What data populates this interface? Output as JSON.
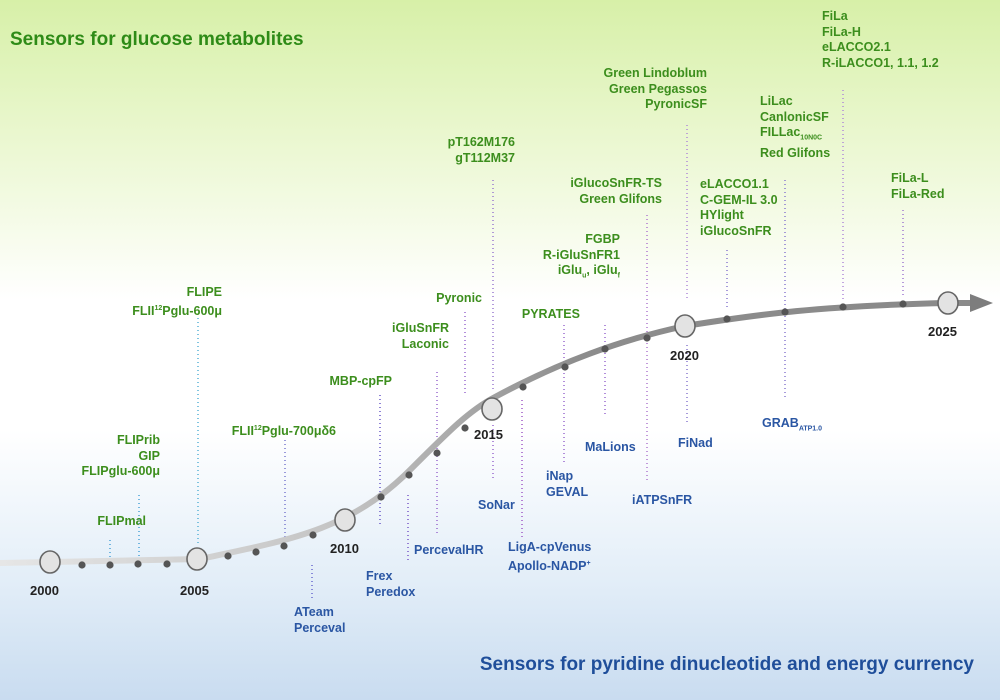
{
  "headings": {
    "top": "Sensors for glucose metabolites",
    "bottom": "Sensors for pyridine dinucleotide and energy currency"
  },
  "years": [
    "2000",
    "2005",
    "2010",
    "2015",
    "2020",
    "2025"
  ],
  "colors": {
    "green": "#3c8e1d",
    "blue": "#2a56a3",
    "curve": "#8c8c8c",
    "node": "#555555"
  },
  "glucose_sensors": [
    {
      "name": "flipmal",
      "lines": [
        "FLIPmal"
      ]
    },
    {
      "name": "flip-group-2003",
      "lines": [
        "FLIPrib",
        "GIP",
        "FLIPglu-600μ"
      ]
    },
    {
      "name": "flipe-group",
      "lines": [
        "FLIPE",
        "FLII|12|Pglu-600μ"
      ]
    },
    {
      "name": "flii-700",
      "lines": [
        "FLII|12|Pglu-700μδ6"
      ]
    },
    {
      "name": "mbp-cpfp",
      "lines": [
        "MBP-cpFP"
      ]
    },
    {
      "name": "iglusnfr-laconic",
      "lines": [
        "iGluSnFR",
        "Laconic"
      ]
    },
    {
      "name": "pyronic",
      "lines": [
        "Pyronic"
      ]
    },
    {
      "name": "pt162",
      "lines": [
        "pT162M176",
        "gT112M37"
      ]
    },
    {
      "name": "pyrates",
      "lines": [
        "PYRATES"
      ]
    },
    {
      "name": "fgbp-group",
      "lines": [
        "FGBP",
        "R-iGluSnFR1",
        "iGlu_u, iGlu_f"
      ]
    },
    {
      "name": "iglucosnfr-ts-group",
      "lines": [
        "iGlucoSnFR-TS",
        "Green Glifons"
      ]
    },
    {
      "name": "lindoblum-group",
      "lines": [
        "Green Lindoblum",
        "Green Pegassos",
        "PyronicSF"
      ]
    },
    {
      "name": "elacco11-group",
      "lines": [
        "eLACCO1.1",
        "C-GEM-IL 3.0",
        "HYlight",
        "iGlucoSnFR"
      ]
    },
    {
      "name": "lilac-group",
      "lines": [
        "LiLac",
        "CanlonicSF",
        "FILLac_10N0C",
        "Red Glifons"
      ]
    },
    {
      "name": "fila-group",
      "lines": [
        "FiLa",
        "FiLa-H",
        "eLACCO2.1",
        "R-iLACCO1, 1.1, 1.2"
      ]
    },
    {
      "name": "fila-l-group",
      "lines": [
        "FiLa-L",
        "FiLa-Red"
      ]
    }
  ],
  "energy_sensors": [
    {
      "name": "ateam-group",
      "lines": [
        "ATeam",
        "Perceval"
      ]
    },
    {
      "name": "frex-group",
      "lines": [
        "Frex",
        "Peredox"
      ]
    },
    {
      "name": "percevalhr",
      "lines": [
        "PercevalHR"
      ]
    },
    {
      "name": "sonar",
      "lines": [
        "SoNar"
      ]
    },
    {
      "name": "ligacpvenus-group",
      "lines": [
        "LigA-cpVenus",
        "Apollo-NADP|+|"
      ]
    },
    {
      "name": "inap-group",
      "lines": [
        "iNap",
        "GEVAL"
      ]
    },
    {
      "name": "malions",
      "lines": [
        "MaLions"
      ]
    },
    {
      "name": "iatpsnfr",
      "lines": [
        "iATPSnFR"
      ]
    },
    {
      "name": "finad",
      "lines": [
        "FiNad"
      ]
    },
    {
      "name": "grab-atp",
      "lines": [
        "GRAB_ATP1.0"
      ]
    }
  ]
}
